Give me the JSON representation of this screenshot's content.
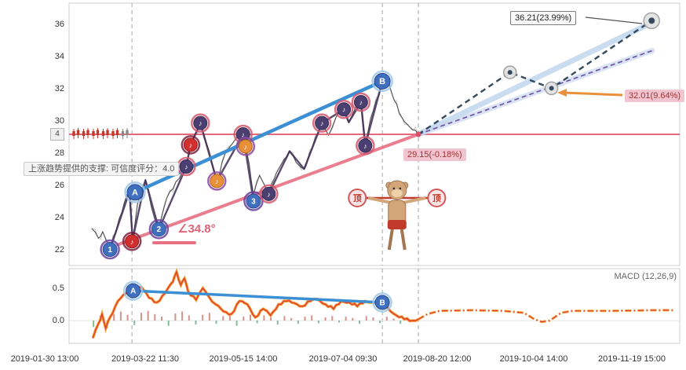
{
  "colors": {
    "price_line": "#4d4d4d",
    "price_fuzz": "#9a9a9a",
    "wave_line": "#3d2b56",
    "trend_blue": "#3d8fd4",
    "trend_pink": "#e87083",
    "level_pink": "#e66a7d",
    "proj_navy": "#34495e",
    "proj_band_upper": "#b8d0ea",
    "proj_band_lower": "#c9d7ee",
    "proj_purple": "#6a4fa0",
    "macd_orange": "#f59a23",
    "macd_red": "#e0403a",
    "hist_up": "#b03a2e",
    "hist_down": "#1e8449",
    "guide_grey": "#a5a5a5",
    "marker_blue": "#3f6fbf",
    "marker_purple": "#4b3f72",
    "marker_red": "#d32f2f",
    "marker_orange": "#e8903a",
    "mascot_skin": "#d2a679",
    "mascot_dark": "#a07550",
    "mascot_red": "#c0392b"
  },
  "labels": {
    "support_tooltip": "上涨趋势提供的支撑: 可信度评分：4.0",
    "angle": "∠34.8°",
    "target_high": "36.21(23.99%)",
    "mid": "32.01(9.64%)",
    "current": "29.15(-0.18%)",
    "score_axis": "4",
    "top_pattern": "顶"
  },
  "chart_data": [
    {
      "type": "line",
      "title": "price panel with wave annotations",
      "ylim": [
        21.0,
        37.3
      ],
      "y_ticks": [
        36,
        34,
        32,
        30,
        28,
        26,
        24,
        22
      ],
      "x_ticks": [
        "2019-01-30 13:00",
        "2019-03-22 11:30",
        "2019-05-15 14:00",
        "2019-07-04 09:30",
        "2019-08-20 12:00",
        "2019-10-04 14:00",
        "2019-11-19 15:00"
      ],
      "level_line": 29.15,
      "guides_t": [
        0.103,
        0.513,
        0.572
      ],
      "series": [
        {
          "name": "price",
          "points": [
            [
              0.037,
              23.3
            ],
            [
              0.048,
              22.7
            ],
            [
              0.055,
              23.1
            ],
            [
              0.067,
              22.0
            ],
            [
              0.082,
              23.9
            ],
            [
              0.095,
              25.4
            ],
            [
              0.099,
              25.6
            ],
            [
              0.104,
              22.6
            ],
            [
              0.112,
              24.8
            ],
            [
              0.125,
              26.3
            ],
            [
              0.135,
              24.6
            ],
            [
              0.147,
              23.3
            ],
            [
              0.16,
              25.2
            ],
            [
              0.175,
              26.2
            ],
            [
              0.192,
              27.2
            ],
            [
              0.199,
              28.5
            ],
            [
              0.215,
              29.9
            ],
            [
              0.225,
              28.6
            ],
            [
              0.234,
              27.4
            ],
            [
              0.242,
              26.2
            ],
            [
              0.255,
              27.9
            ],
            [
              0.268,
              28.6
            ],
            [
              0.278,
              29.1
            ],
            [
              0.285,
              29.2
            ],
            [
              0.289,
              28.4
            ],
            [
              0.295,
              27.3
            ],
            [
              0.302,
              25.4
            ],
            [
              0.312,
              26.6
            ],
            [
              0.32,
              26.0
            ],
            [
              0.327,
              25.5
            ],
            [
              0.34,
              26.8
            ],
            [
              0.352,
              27.6
            ],
            [
              0.361,
              28.1
            ],
            [
              0.372,
              27.4
            ],
            [
              0.385,
              27.0
            ],
            [
              0.398,
              28.3
            ],
            [
              0.414,
              29.9
            ],
            [
              0.425,
              29.1
            ],
            [
              0.437,
              30.2
            ],
            [
              0.45,
              30.7
            ],
            [
              0.458,
              29.9
            ],
            [
              0.47,
              30.9
            ],
            [
              0.478,
              31.1
            ],
            [
              0.485,
              28.7
            ],
            [
              0.498,
              30.6
            ],
            [
              0.513,
              32.3
            ],
            [
              0.523,
              32.4
            ],
            [
              0.532,
              31.3
            ],
            [
              0.545,
              30.2
            ],
            [
              0.558,
              29.6
            ],
            [
              0.572,
              29.15
            ]
          ]
        },
        {
          "name": "wave",
          "points": [
            [
              0.067,
              22.0
            ],
            [
              0.099,
              25.6
            ],
            [
              0.104,
              22.6
            ],
            [
              0.125,
              26.3
            ],
            [
              0.147,
              23.26
            ],
            [
              0.192,
              27.15
            ],
            [
              0.199,
              28.5
            ],
            [
              0.215,
              29.85
            ],
            [
              0.242,
              26.25
            ],
            [
              0.285,
              29.15
            ],
            [
              0.302,
              25.0
            ],
            [
              0.327,
              25.45
            ],
            [
              0.361,
              28.1
            ],
            [
              0.385,
              27.0
            ],
            [
              0.414,
              29.85
            ],
            [
              0.45,
              30.7
            ],
            [
              0.458,
              29.9
            ],
            [
              0.478,
              31.15
            ],
            [
              0.485,
              28.45
            ],
            [
              0.513,
              32.45
            ]
          ]
        },
        {
          "name": "trend-blue-AB",
          "points": [
            [
              0.108,
              25.55
            ],
            [
              0.513,
              32.45
            ]
          ]
        },
        {
          "name": "trend-pink-support",
          "points": [
            [
              0.08,
              22.3
            ],
            [
              0.572,
              29.15
            ]
          ]
        },
        {
          "name": "projection-navy-dashed",
          "points": [
            [
              0.572,
              29.15
            ],
            [
              0.722,
              33.0
            ],
            [
              0.79,
              32.01
            ],
            [
              0.954,
              36.21
            ]
          ]
        },
        {
          "name": "projection-band-upper",
          "points": [
            [
              0.572,
              29.15
            ],
            [
              0.955,
              36.1
            ]
          ]
        },
        {
          "name": "projection-band-lower",
          "points": [
            [
              0.572,
              29.15
            ],
            [
              0.955,
              34.35
            ]
          ]
        }
      ],
      "ring_markers": [
        [
          0.722,
          33.0
        ],
        [
          0.79,
          32.01
        ],
        [
          0.954,
          36.21
        ]
      ],
      "markers": [
        {
          "label": "1",
          "type": "num",
          "t": 0.067,
          "p": 22.0
        },
        {
          "label": "♪",
          "type": "red",
          "t": 0.103,
          "p": 22.5
        },
        {
          "label": "A",
          "type": "AB",
          "t": 0.108,
          "p": 25.55
        },
        {
          "label": "2",
          "type": "num",
          "t": 0.147,
          "p": 23.26
        },
        {
          "label": "♪",
          "type": "purple",
          "t": 0.192,
          "p": 27.15
        },
        {
          "label": "♪",
          "type": "red",
          "t": 0.199,
          "p": 28.5
        },
        {
          "label": "♪",
          "type": "purple",
          "t": 0.215,
          "p": 29.85
        },
        {
          "label": "♪",
          "type": "orange",
          "t": 0.242,
          "p": 26.25
        },
        {
          "label": "♪",
          "type": "purple",
          "t": 0.285,
          "p": 29.15
        },
        {
          "label": "♪",
          "type": "orange",
          "t": 0.289,
          "p": 28.4
        },
        {
          "label": "3",
          "type": "num",
          "t": 0.302,
          "p": 25.0
        },
        {
          "label": "♪",
          "type": "purple",
          "t": 0.327,
          "p": 25.45
        },
        {
          "label": "♪",
          "type": "purple",
          "t": 0.414,
          "p": 29.85
        },
        {
          "label": "♪",
          "type": "purple",
          "t": 0.45,
          "p": 30.7
        },
        {
          "label": "♪",
          "type": "purple",
          "t": 0.478,
          "p": 31.15
        },
        {
          "label": "♪",
          "type": "purple",
          "t": 0.485,
          "p": 28.45
        },
        {
          "label": "B",
          "type": "AB",
          "t": 0.513,
          "p": 32.45
        }
      ],
      "mascot": {
        "t_left": 0.472,
        "t_right": 0.602,
        "p_bar": 25.2
      }
    },
    {
      "type": "line",
      "title": "MACD panel",
      "legend": "MACD (12,26,9)",
      "ylim": [
        -0.35,
        0.8
      ],
      "y_ticks": [
        0.5,
        0.0
      ],
      "ab_labels": [
        "A",
        "B"
      ],
      "series": [
        {
          "name": "macd-line",
          "points": [
            [
              0.039,
              -0.27
            ],
            [
              0.048,
              -0.05
            ],
            [
              0.054,
              0.1
            ],
            [
              0.06,
              -0.12
            ],
            [
              0.067,
              0.05
            ],
            [
              0.08,
              0.3
            ],
            [
              0.093,
              0.42
            ],
            [
              0.105,
              0.46
            ],
            [
              0.118,
              0.52
            ],
            [
              0.131,
              0.35
            ],
            [
              0.144,
              0.28
            ],
            [
              0.157,
              0.42
            ],
            [
              0.17,
              0.6
            ],
            [
              0.176,
              0.75
            ],
            [
              0.183,
              0.55
            ],
            [
              0.189,
              0.65
            ],
            [
              0.195,
              0.45
            ],
            [
              0.208,
              0.32
            ],
            [
              0.219,
              0.5
            ],
            [
              0.228,
              0.38
            ],
            [
              0.24,
              0.25
            ],
            [
              0.253,
              0.14
            ],
            [
              0.266,
              0.1
            ],
            [
              0.279,
              0.3
            ],
            [
              0.292,
              0.25
            ],
            [
              0.305,
              0.05
            ],
            [
              0.318,
              0.18
            ],
            [
              0.33,
              0.08
            ],
            [
              0.343,
              0.25
            ],
            [
              0.356,
              0.3
            ],
            [
              0.369,
              0.27
            ],
            [
              0.382,
              0.22
            ],
            [
              0.395,
              0.3
            ],
            [
              0.407,
              0.33
            ],
            [
              0.42,
              0.25
            ],
            [
              0.433,
              0.18
            ],
            [
              0.446,
              0.3
            ],
            [
              0.459,
              0.28
            ],
            [
              0.472,
              0.22
            ],
            [
              0.485,
              0.3
            ],
            [
              0.497,
              0.28
            ],
            [
              0.513,
              0.28
            ],
            [
              0.523,
              0.18
            ],
            [
              0.536,
              0.08
            ],
            [
              0.549,
              0.02
            ],
            [
              0.562,
              0.0
            ],
            [
              0.572,
              0.02
            ]
          ]
        },
        {
          "name": "macd-forecast",
          "points": [
            [
              0.572,
              0.02
            ],
            [
              0.587,
              0.1
            ],
            [
              0.607,
              0.15
            ],
            [
              0.66,
              0.16
            ],
            [
              0.71,
              0.15
            ],
            [
              0.745,
              0.12
            ],
            [
              0.762,
              0.02
            ],
            [
              0.774,
              -0.02
            ],
            [
              0.787,
              0.0
            ],
            [
              0.806,
              0.12
            ],
            [
              0.825,
              0.15
            ],
            [
              0.89,
              0.15
            ],
            [
              0.955,
              0.16
            ],
            [
              0.99,
              0.16
            ]
          ]
        },
        {
          "name": "trend-blue-AB",
          "points": [
            [
              0.105,
              0.46
            ],
            [
              0.513,
              0.28
            ]
          ]
        }
      ],
      "histogram": {
        "t_start": 0.04,
        "t_end": 0.565,
        "values": [
          -0.1,
          0.08,
          -0.12,
          0.1,
          0.14,
          0.09,
          -0.07,
          0.12,
          0.15,
          0.1,
          0.06,
          -0.08,
          0.11,
          0.14,
          0.08,
          -0.06,
          0.09,
          0.12,
          -0.05,
          0.07,
          0.1,
          -0.08,
          0.06,
          0.09,
          -0.04,
          0.08,
          0.05,
          -0.06,
          0.07,
          0.04,
          -0.05,
          0.06,
          0.08,
          -0.04,
          0.05,
          0.07,
          -0.03,
          0.06,
          0.04,
          -0.05,
          0.07,
          0.05,
          -0.04,
          0.06,
          0.03,
          -0.05,
          0.04,
          0.02
        ]
      }
    }
  ]
}
